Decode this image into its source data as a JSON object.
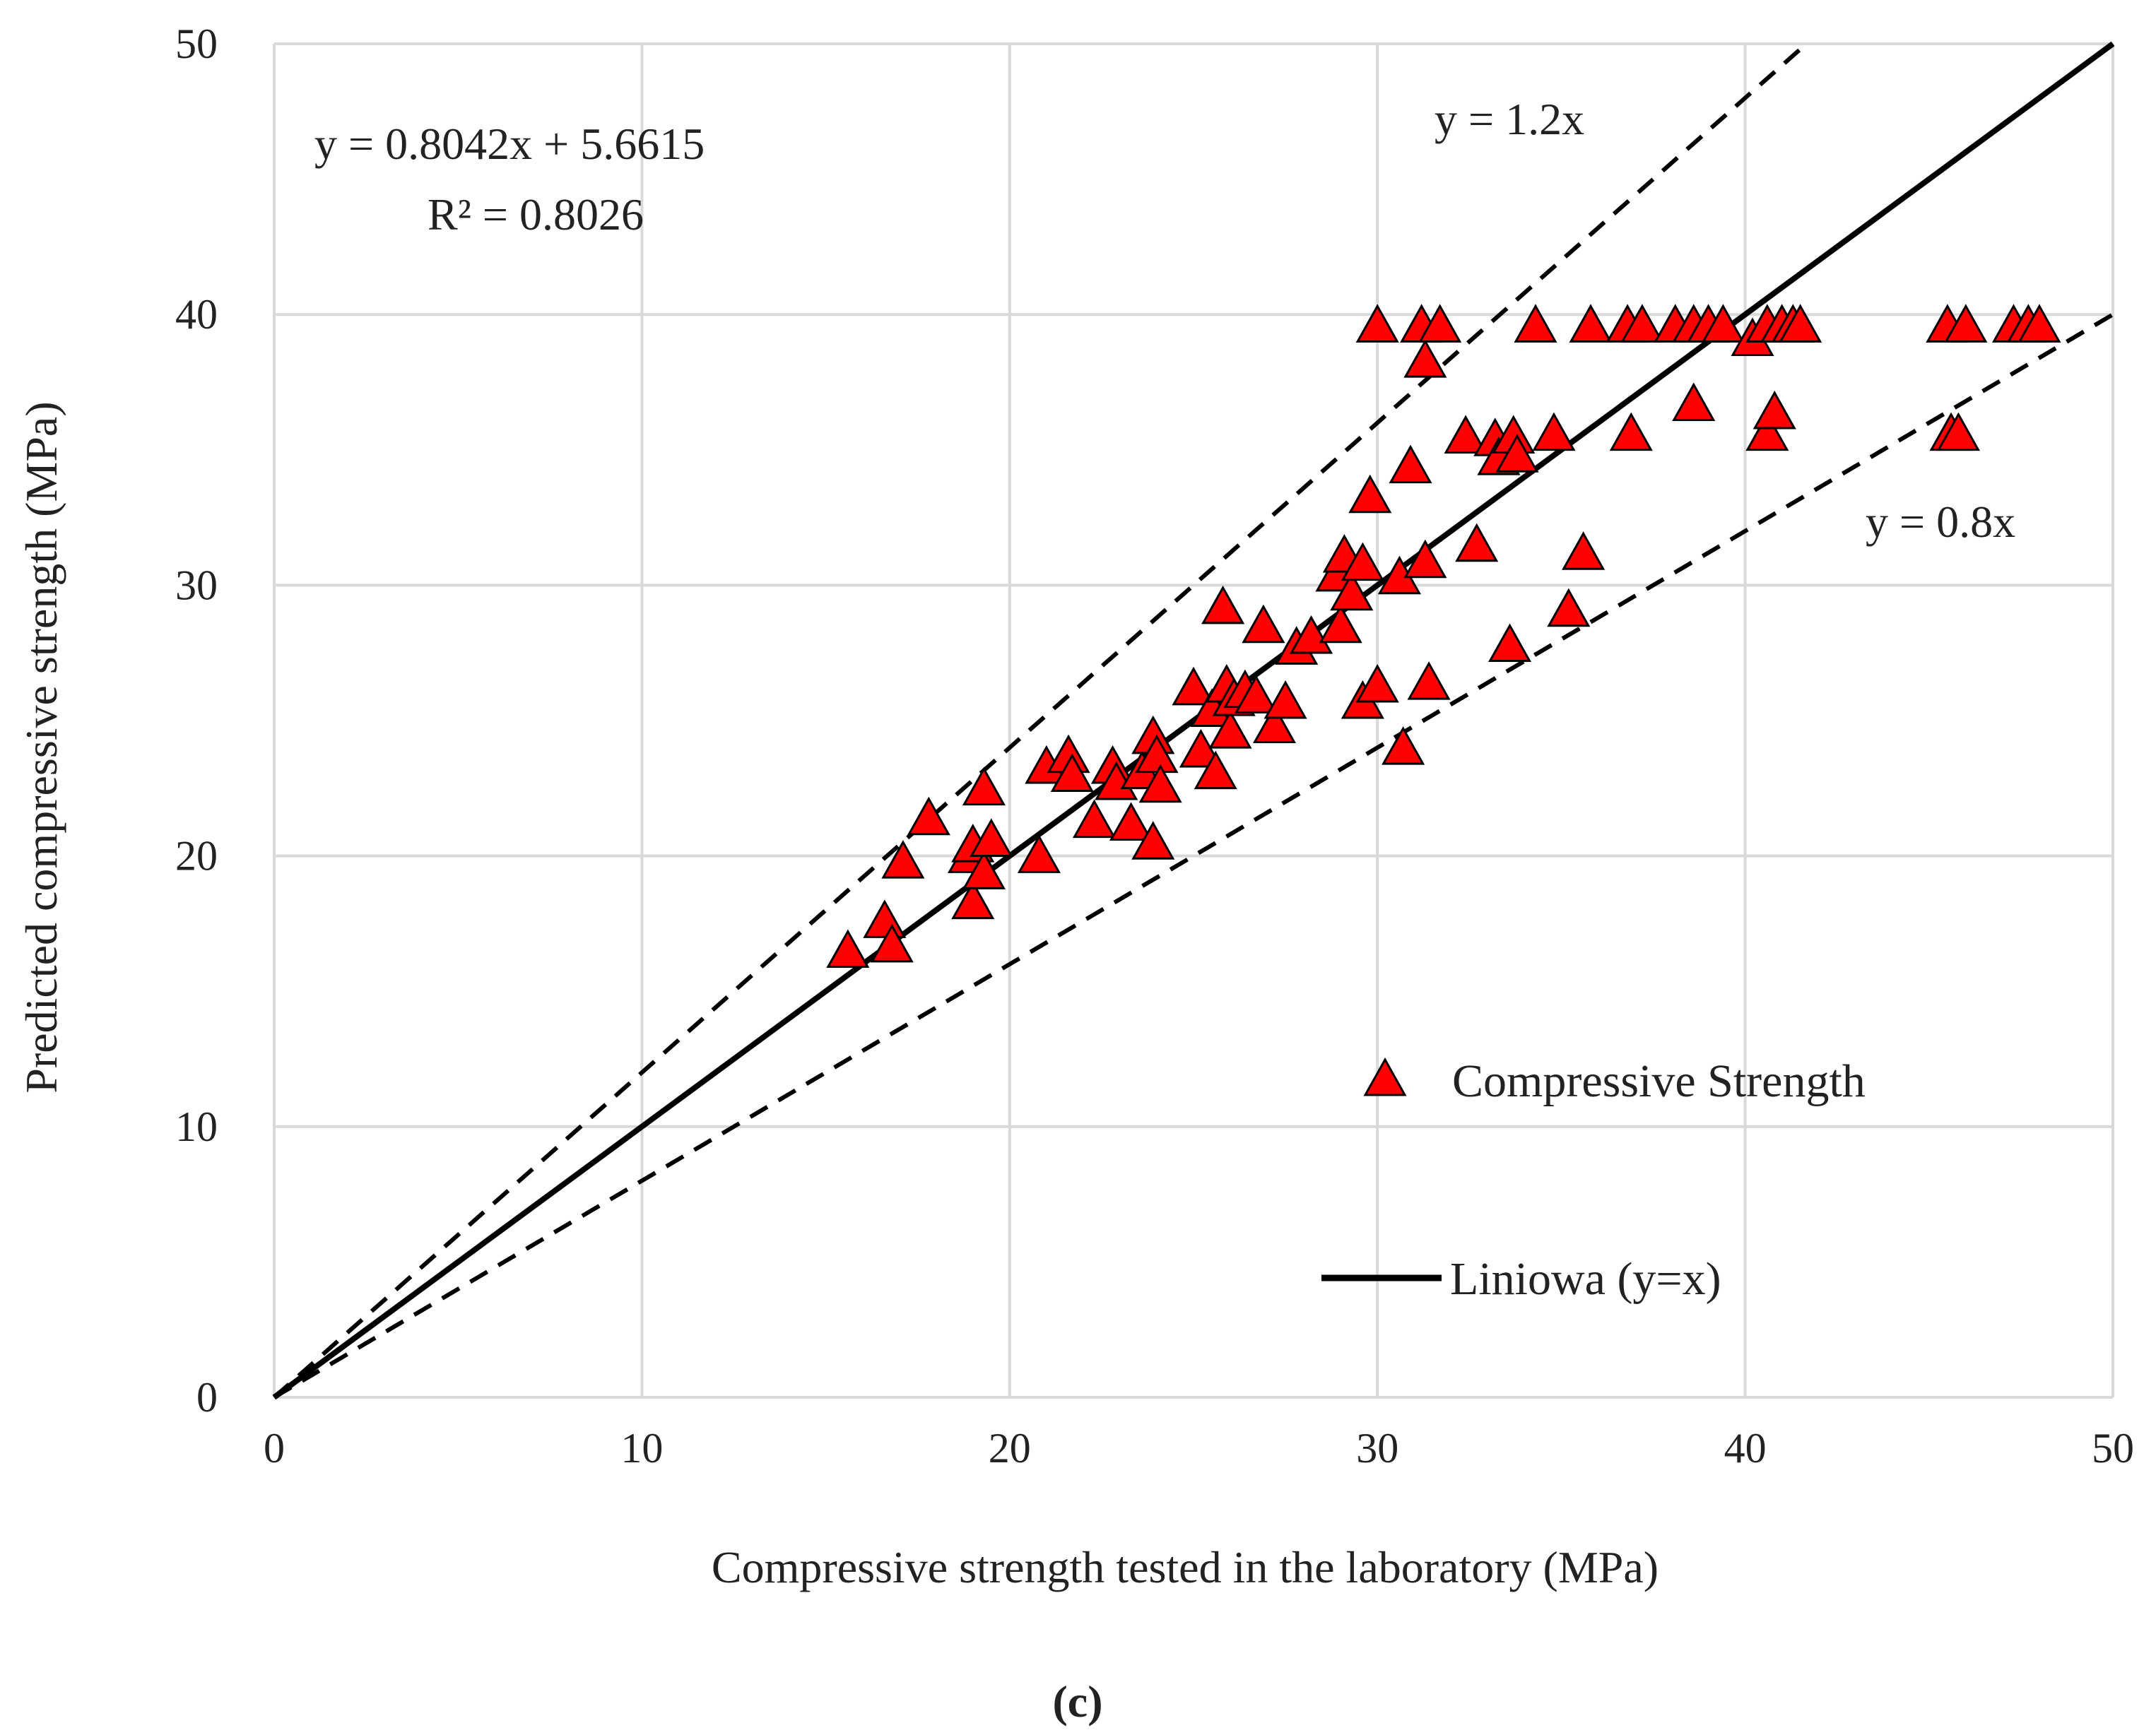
{
  "chart_data": {
    "type": "scatter",
    "xlabel": "Compressive strength tested in the laboratory (MPa)",
    "ylabel": "Predicted compressive strength (MPa)",
    "xlim": [
      0,
      50
    ],
    "ylim": [
      0,
      50
    ],
    "x_ticks": [
      "0",
      "10",
      "20",
      "30",
      "40",
      "50"
    ],
    "y_ticks": [
      "0",
      "10",
      "20",
      "30",
      "40",
      "50"
    ],
    "grid": true,
    "legend_position": "center-right",
    "caption": "(c)",
    "colors": {
      "marker_fill": "#ff0000",
      "marker_stroke": "#000000",
      "line": "#000000",
      "grid": "#d9d9d9"
    },
    "annotations": {
      "regression_equation": "y = 0.8042x + 5.6615",
      "r_squared": "R² = 0.8026",
      "upper_line_label": "y = 1.2x",
      "lower_line_label": "y = 0.8x"
    },
    "lines": [
      {
        "name": "Liniowa (y=x)",
        "slope": 1.0,
        "style": "solid"
      },
      {
        "slope": 1.2,
        "style": "dashed"
      },
      {
        "slope": 0.8,
        "style": "dashed"
      }
    ],
    "series": [
      {
        "name": "Compressive Strength",
        "marker": "triangle",
        "points": [
          [
            15.6,
            16.4
          ],
          [
            16.6,
            17.5
          ],
          [
            16.8,
            16.6
          ],
          [
            17.1,
            19.7
          ],
          [
            17.8,
            21.3
          ],
          [
            18.9,
            19.9
          ],
          [
            19.0,
            20.3
          ],
          [
            19.0,
            18.2
          ],
          [
            19.3,
            22.4
          ],
          [
            19.3,
            19.3
          ],
          [
            19.5,
            20.5
          ],
          [
            20.8,
            19.9
          ],
          [
            21.0,
            23.2
          ],
          [
            21.6,
            23.6
          ],
          [
            21.7,
            22.9
          ],
          [
            22.3,
            21.2
          ],
          [
            22.8,
            23.2
          ],
          [
            22.9,
            22.6
          ],
          [
            23.3,
            21.1
          ],
          [
            23.6,
            23.0
          ],
          [
            23.9,
            24.3
          ],
          [
            23.9,
            20.4
          ],
          [
            24.0,
            23.6
          ],
          [
            24.1,
            22.5
          ],
          [
            25.0,
            26.1
          ],
          [
            25.2,
            23.8
          ],
          [
            25.5,
            25.3
          ],
          [
            25.6,
            23.0
          ],
          [
            25.8,
            29.1
          ],
          [
            25.9,
            26.2
          ],
          [
            26.0,
            24.5
          ],
          [
            26.1,
            25.7
          ],
          [
            26.4,
            26.0
          ],
          [
            26.7,
            25.8
          ],
          [
            26.9,
            28.4
          ],
          [
            27.2,
            24.7
          ],
          [
            27.5,
            25.6
          ],
          [
            27.8,
            27.6
          ],
          [
            28.2,
            28.0
          ],
          [
            28.9,
            30.3
          ],
          [
            29.0,
            28.4
          ],
          [
            29.1,
            31.0
          ],
          [
            29.3,
            29.6
          ],
          [
            29.6,
            30.7
          ],
          [
            29.6,
            25.6
          ],
          [
            29.8,
            33.2
          ],
          [
            30.0,
            39.5
          ],
          [
            30.0,
            26.2
          ],
          [
            30.6,
            30.2
          ],
          [
            30.7,
            23.9
          ],
          [
            30.9,
            34.3
          ],
          [
            31.2,
            39.5
          ],
          [
            31.3,
            38.2
          ],
          [
            31.3,
            30.8
          ],
          [
            31.4,
            26.3
          ],
          [
            31.7,
            39.5
          ],
          [
            32.4,
            35.4
          ],
          [
            32.7,
            31.4
          ],
          [
            33.2,
            35.3
          ],
          [
            33.3,
            34.6
          ],
          [
            33.6,
            27.7
          ],
          [
            33.7,
            35.4
          ],
          [
            33.8,
            34.7
          ],
          [
            34.3,
            39.5
          ],
          [
            34.8,
            35.5
          ],
          [
            35.2,
            29.0
          ],
          [
            35.6,
            31.1
          ],
          [
            35.8,
            39.5
          ],
          [
            36.8,
            39.5
          ],
          [
            36.9,
            35.5
          ],
          [
            37.2,
            39.5
          ],
          [
            38.1,
            39.5
          ],
          [
            38.6,
            36.6
          ],
          [
            38.6,
            39.5
          ],
          [
            39.0,
            39.5
          ],
          [
            39.4,
            39.5
          ],
          [
            40.2,
            39.0
          ],
          [
            40.6,
            39.5
          ],
          [
            40.6,
            35.5
          ],
          [
            40.8,
            36.3
          ],
          [
            41.0,
            39.5
          ],
          [
            41.3,
            39.5
          ],
          [
            41.5,
            39.5
          ],
          [
            45.5,
            39.5
          ],
          [
            45.6,
            35.5
          ],
          [
            45.8,
            35.5
          ],
          [
            46.0,
            39.5
          ],
          [
            47.3,
            39.5
          ],
          [
            47.7,
            39.5
          ],
          [
            48.0,
            39.5
          ]
        ]
      }
    ]
  }
}
